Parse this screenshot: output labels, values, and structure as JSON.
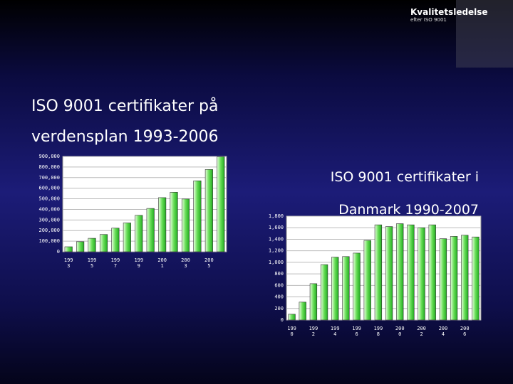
{
  "logo": {
    "title": "Kvalitetsledelse",
    "subtitle": "efter ISO 9001"
  },
  "chart_data": [
    {
      "type": "bar",
      "title": "ISO 9001 certifikater på verdensplan 1993-2006",
      "categories": [
        "1993",
        null,
        "1995",
        null,
        "1997",
        null,
        "1999",
        null,
        "2001",
        null,
        "2003",
        null,
        "2005",
        null
      ],
      "values": [
        47000,
        95000,
        127000,
        163000,
        223000,
        272000,
        344000,
        409000,
        511000,
        562000,
        498000,
        670000,
        777000,
        897000
      ],
      "color": "#44cc44",
      "ylim": [
        0,
        900000
      ],
      "yticks": [
        0,
        {
          "value": 100000,
          "label": "100,000"
        },
        {
          "value": 200000,
          "label": "200,000"
        },
        {
          "value": 300000,
          "label": "300,000"
        },
        {
          "value": 400000,
          "label": "400,000"
        },
        {
          "value": 500000,
          "label": "500,000"
        },
        {
          "value": 600000,
          "label": "600,000"
        },
        {
          "value": 700000,
          "label": "700,000"
        },
        {
          "value": 800000,
          "label": "800,000"
        },
        {
          "value": 900000,
          "label": "900,000"
        }
      ],
      "grid": true
    },
    {
      "type": "bar",
      "title": "ISO 9001 certifikater i Danmark 1990-2007",
      "categories": [
        "1990",
        null,
        "1992",
        null,
        "1994",
        null,
        "1996",
        null,
        "1998",
        null,
        "2000",
        null,
        "2002",
        null,
        "2004",
        null,
        "2006",
        null
      ],
      "values": [
        100,
        310,
        630,
        960,
        1090,
        1100,
        1160,
        1380,
        1650,
        1620,
        1670,
        1650,
        1600,
        1650,
        1410,
        1450,
        1470,
        1440
      ],
      "color": "#44cc44",
      "ylim": [
        0,
        1800
      ],
      "yticks": [
        0,
        200,
        400,
        600,
        800,
        {
          "value": 1000,
          "label": "1,000"
        },
        {
          "value": 1200,
          "label": "1,200"
        },
        {
          "value": 1400,
          "label": "1,400"
        },
        {
          "value": 1600,
          "label": "1,600"
        },
        {
          "value": 1800,
          "label": "1,800"
        }
      ],
      "grid": true
    }
  ]
}
